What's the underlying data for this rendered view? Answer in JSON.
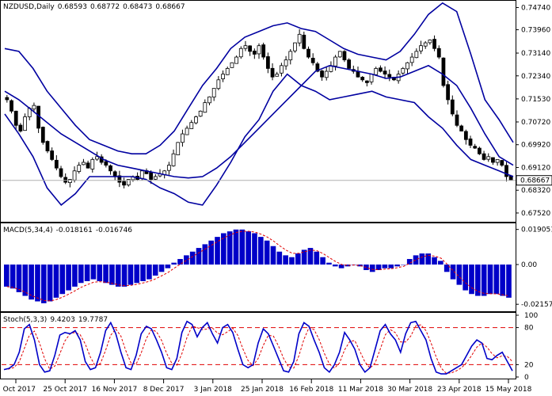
{
  "chart_data": {
    "type": "candlestick",
    "symbol": "NZDUSD",
    "timeframe": "Daily",
    "ohlc": {
      "open": "0.68593",
      "high": "0.68772",
      "low": "0.68473",
      "close": "0.68667"
    },
    "current_price": "0.68667",
    "price_ticks": [
      "0.74740",
      "0.73960",
      "0.73140",
      "0.72340",
      "0.71530",
      "0.70720",
      "0.69920",
      "0.69120",
      "0.68320",
      "0.67520"
    ],
    "price_ylim": [
      0.6724,
      0.7495
    ],
    "date_labels": [
      "5 Oct 2017",
      "25 Oct 2017",
      "16 Nov 2017",
      "8 Dec 2017",
      "3 Jan 2018",
      "25 Jan 2018",
      "16 Feb 2018",
      "11 Mar 2018",
      "30 Mar 2018",
      "23 Apr 2018",
      "15 May 2018"
    ],
    "close_series": [
      0.715,
      0.711,
      0.706,
      0.704,
      0.709,
      0.712,
      0.713,
      0.705,
      0.7,
      0.697,
      0.694,
      0.691,
      0.688,
      0.686,
      0.687,
      0.69,
      0.692,
      0.693,
      0.691,
      0.694,
      0.695,
      0.693,
      0.692,
      0.69,
      0.688,
      0.686,
      0.685,
      0.687,
      0.688,
      0.687,
      0.69,
      0.689,
      0.687,
      0.688,
      0.689,
      0.69,
      0.692,
      0.696,
      0.7,
      0.703,
      0.705,
      0.707,
      0.709,
      0.711,
      0.714,
      0.716,
      0.719,
      0.722,
      0.724,
      0.726,
      0.728,
      0.73,
      0.733,
      0.734,
      0.732,
      0.731,
      0.734,
      0.73,
      0.726,
      0.723,
      0.724,
      0.727,
      0.729,
      0.732,
      0.735,
      0.738,
      0.733,
      0.73,
      0.728,
      0.725,
      0.723,
      0.725,
      0.727,
      0.73,
      0.732,
      0.729,
      0.726,
      0.725,
      0.723,
      0.722,
      0.721,
      0.724,
      0.726,
      0.725,
      0.724,
      0.723,
      0.722,
      0.724,
      0.726,
      0.728,
      0.73,
      0.732,
      0.734,
      0.735,
      0.736,
      0.733,
      0.73,
      0.72,
      0.715,
      0.71,
      0.706,
      0.704,
      0.701,
      0.699,
      0.698,
      0.696,
      0.694,
      0.695,
      0.693,
      0.694,
      0.692,
      0.688,
      0.6867
    ],
    "bollinger": {
      "mid": [
        0.718,
        0.715,
        0.711,
        0.707,
        0.703,
        0.7,
        0.697,
        0.694,
        0.692,
        0.691,
        0.69,
        0.689,
        0.688,
        0.6875,
        0.688,
        0.691,
        0.695,
        0.7,
        0.705,
        0.71,
        0.715,
        0.72,
        0.725,
        0.727,
        0.726,
        0.725,
        0.724,
        0.7225,
        0.723,
        0.725,
        0.727,
        0.724,
        0.72,
        0.712,
        0.703,
        0.695,
        0.692
      ],
      "upper": [
        0.733,
        0.732,
        0.726,
        0.718,
        0.712,
        0.706,
        0.701,
        0.699,
        0.697,
        0.696,
        0.696,
        0.699,
        0.704,
        0.712,
        0.72,
        0.726,
        0.733,
        0.737,
        0.739,
        0.741,
        0.742,
        0.74,
        0.739,
        0.736,
        0.733,
        0.731,
        0.73,
        0.729,
        0.732,
        0.738,
        0.745,
        0.749,
        0.746,
        0.731,
        0.715,
        0.708,
        0.7
      ],
      "lower": [
        0.71,
        0.703,
        0.695,
        0.684,
        0.678,
        0.682,
        0.688,
        0.688,
        0.688,
        0.688,
        0.687,
        0.684,
        0.682,
        0.679,
        0.678,
        0.685,
        0.693,
        0.702,
        0.708,
        0.718,
        0.724,
        0.72,
        0.718,
        0.715,
        0.716,
        0.717,
        0.718,
        0.716,
        0.715,
        0.714,
        0.709,
        0.705,
        0.699,
        0.694,
        0.692,
        0.69,
        0.688
      ]
    },
    "macd": {
      "label": "MACD(5,34,4)",
      "main": "-0.018161",
      "signal": "-0.016746",
      "ticks": [
        "0.019051",
        "0.00",
        "-0.02157"
      ],
      "ylim": [
        -0.0245,
        0.0215
      ],
      "histogram": [
        -0.012,
        -0.013,
        -0.015,
        -0.017,
        -0.019,
        -0.02,
        -0.021,
        -0.02,
        -0.018,
        -0.016,
        -0.014,
        -0.012,
        -0.01,
        -0.009,
        -0.008,
        -0.009,
        -0.01,
        -0.011,
        -0.012,
        -0.012,
        -0.011,
        -0.01,
        -0.009,
        -0.008,
        -0.006,
        -0.004,
        -0.002,
        0.001,
        0.003,
        0.005,
        0.007,
        0.009,
        0.011,
        0.013,
        0.015,
        0.017,
        0.018,
        0.019,
        0.019,
        0.018,
        0.017,
        0.015,
        0.013,
        0.01,
        0.007,
        0.005,
        0.004,
        0.006,
        0.008,
        0.009,
        0.007,
        0.004,
        0.001,
        -0.001,
        -0.002,
        -0.001,
        0.0,
        -0.001,
        -0.003,
        -0.004,
        -0.003,
        -0.002,
        -0.002,
        -0.001,
        0.0,
        0.003,
        0.005,
        0.006,
        0.006,
        0.004,
        0.002,
        -0.004,
        -0.008,
        -0.011,
        -0.014,
        -0.016,
        -0.017,
        -0.017,
        -0.016,
        -0.016,
        -0.017,
        -0.018
      ]
    },
    "stochastic": {
      "label": "Stoch(5,3,3)",
      "k": "9.4203",
      "d": "19.7787",
      "ticks": [
        "100",
        "80",
        "20",
        "0"
      ],
      "levels": [
        80,
        20
      ],
      "k_series": [
        12,
        14,
        20,
        40,
        78,
        85,
        60,
        20,
        8,
        10,
        35,
        68,
        72,
        70,
        75,
        60,
        25,
        12,
        15,
        40,
        75,
        88,
        70,
        40,
        15,
        12,
        35,
        70,
        82,
        78,
        60,
        40,
        15,
        12,
        30,
        72,
        90,
        85,
        65,
        80,
        88,
        70,
        55,
        80,
        85,
        72,
        45,
        20,
        15,
        20,
        55,
        78,
        70,
        50,
        30,
        10,
        8,
        25,
        70,
        88,
        82,
        60,
        40,
        15,
        8,
        20,
        40,
        72,
        60,
        45,
        20,
        8,
        15,
        45,
        75,
        85,
        70,
        60,
        40,
        70,
        88,
        90,
        75,
        60,
        30,
        8,
        5,
        5,
        10,
        15,
        20,
        35,
        50,
        60,
        55,
        30,
        28,
        35,
        40,
        25,
        10
      ]
    }
  }
}
